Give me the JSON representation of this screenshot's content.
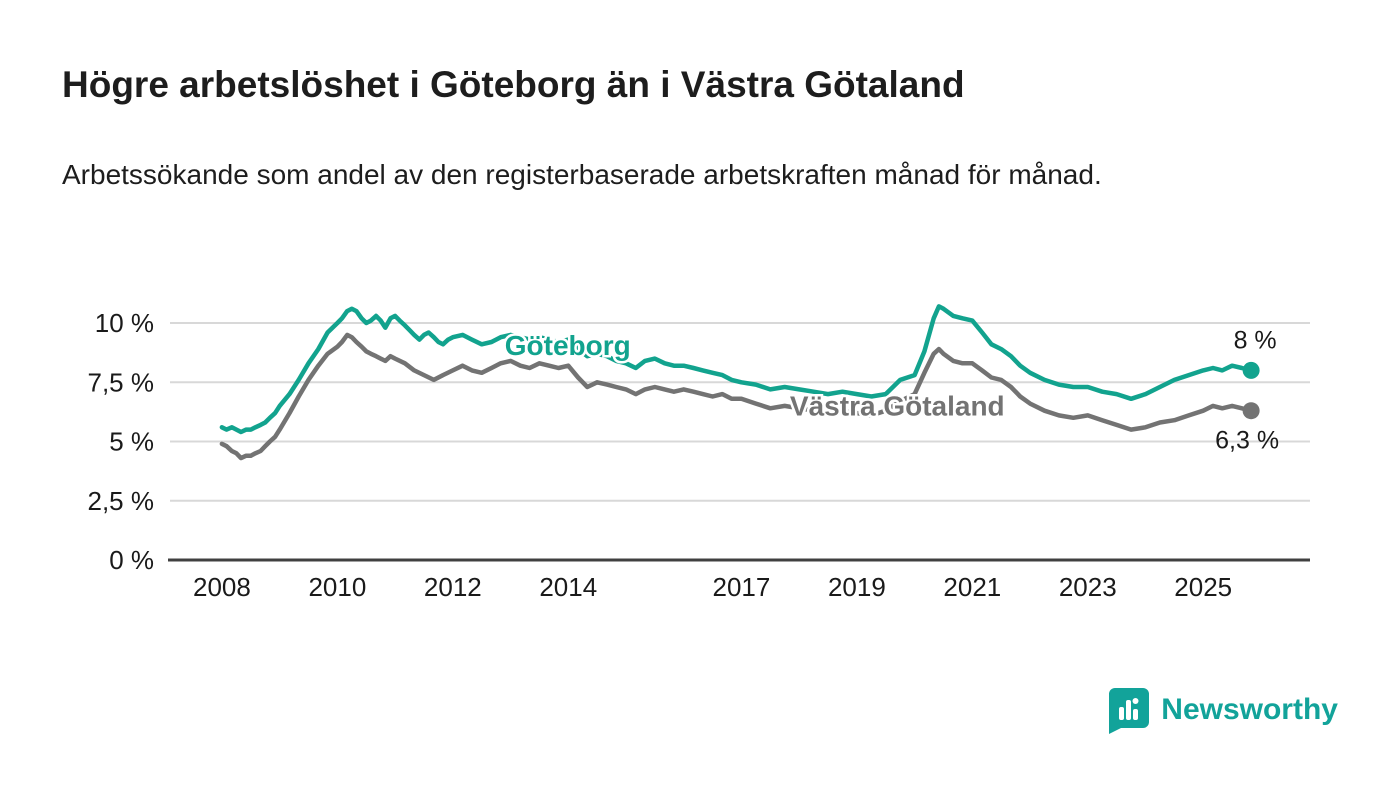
{
  "header": {
    "title": "Högre arbetslöshet i Göteborg än i Västra Götaland",
    "subtitle": "Arbetssökande som andel av den registerbaserade arbetskraften månad för månad."
  },
  "chart_data": {
    "type": "line",
    "title": "Högre arbetslöshet i Göteborg än i Västra Götaland",
    "xlabel": "",
    "ylabel": "",
    "ylim": [
      0,
      10
    ],
    "xlim": [
      2007.1,
      2026.85
    ],
    "grid": "horizontal",
    "legend": "inline-labels",
    "yticks": [
      {
        "value": 0,
        "label": "0 %"
      },
      {
        "value": 2.5,
        "label": "2,5 %"
      },
      {
        "value": 5,
        "label": "5 %"
      },
      {
        "value": 7.5,
        "label": "7,5 %"
      },
      {
        "value": 10,
        "label": "10 %"
      }
    ],
    "xticks": [
      {
        "value": 2008,
        "label": "2008"
      },
      {
        "value": 2010,
        "label": "2010"
      },
      {
        "value": 2012,
        "label": "2012"
      },
      {
        "value": 2014,
        "label": "2014"
      },
      {
        "value": 2017,
        "label": "2017"
      },
      {
        "value": 2019,
        "label": "2019"
      },
      {
        "value": 2021,
        "label": "2021"
      },
      {
        "value": 2023,
        "label": "2023"
      },
      {
        "value": 2025,
        "label": "2025"
      }
    ],
    "series": [
      {
        "name": "Göteborg",
        "color": "#12a38e",
        "end_label": "8 %",
        "label_pos": {
          "x": 2012.9,
          "y": 8.65
        },
        "points": [
          [
            2008.0,
            5.6
          ],
          [
            2008.08,
            5.5
          ],
          [
            2008.17,
            5.6
          ],
          [
            2008.25,
            5.5
          ],
          [
            2008.33,
            5.4
          ],
          [
            2008.42,
            5.5
          ],
          [
            2008.5,
            5.5
          ],
          [
            2008.58,
            5.6
          ],
          [
            2008.67,
            5.7
          ],
          [
            2008.75,
            5.8
          ],
          [
            2008.83,
            6.0
          ],
          [
            2008.92,
            6.2
          ],
          [
            2009.0,
            6.5
          ],
          [
            2009.17,
            7.0
          ],
          [
            2009.33,
            7.6
          ],
          [
            2009.5,
            8.3
          ],
          [
            2009.67,
            8.9
          ],
          [
            2009.83,
            9.6
          ],
          [
            2010.0,
            10.0
          ],
          [
            2010.08,
            10.2
          ],
          [
            2010.17,
            10.5
          ],
          [
            2010.25,
            10.6
          ],
          [
            2010.33,
            10.5
          ],
          [
            2010.42,
            10.2
          ],
          [
            2010.5,
            10.0
          ],
          [
            2010.58,
            10.1
          ],
          [
            2010.67,
            10.3
          ],
          [
            2010.75,
            10.1
          ],
          [
            2010.83,
            9.8
          ],
          [
            2010.92,
            10.2
          ],
          [
            2011.0,
            10.3
          ],
          [
            2011.08,
            10.1
          ],
          [
            2011.17,
            9.9
          ],
          [
            2011.25,
            9.7
          ],
          [
            2011.33,
            9.5
          ],
          [
            2011.42,
            9.3
          ],
          [
            2011.5,
            9.5
          ],
          [
            2011.58,
            9.6
          ],
          [
            2011.67,
            9.4
          ],
          [
            2011.75,
            9.2
          ],
          [
            2011.83,
            9.1
          ],
          [
            2011.92,
            9.3
          ],
          [
            2012.0,
            9.4
          ],
          [
            2012.17,
            9.5
          ],
          [
            2012.33,
            9.3
          ],
          [
            2012.5,
            9.1
          ],
          [
            2012.67,
            9.2
          ],
          [
            2012.83,
            9.4
          ],
          [
            2013.0,
            9.5
          ],
          [
            2013.17,
            9.4
          ],
          [
            2013.33,
            9.3
          ],
          [
            2013.5,
            9.4
          ],
          [
            2013.67,
            9.3
          ],
          [
            2013.83,
            9.2
          ],
          [
            2014.0,
            9.3
          ],
          [
            2014.17,
            8.9
          ],
          [
            2014.33,
            8.6
          ],
          [
            2014.5,
            8.7
          ],
          [
            2014.67,
            8.6
          ],
          [
            2014.83,
            8.4
          ],
          [
            2015.0,
            8.3
          ],
          [
            2015.17,
            8.1
          ],
          [
            2015.33,
            8.4
          ],
          [
            2015.5,
            8.5
          ],
          [
            2015.67,
            8.3
          ],
          [
            2015.83,
            8.2
          ],
          [
            2016.0,
            8.2
          ],
          [
            2016.17,
            8.1
          ],
          [
            2016.33,
            8.0
          ],
          [
            2016.5,
            7.9
          ],
          [
            2016.67,
            7.8
          ],
          [
            2016.83,
            7.6
          ],
          [
            2017.0,
            7.5
          ],
          [
            2017.25,
            7.4
          ],
          [
            2017.5,
            7.2
          ],
          [
            2017.75,
            7.3
          ],
          [
            2018.0,
            7.2
          ],
          [
            2018.25,
            7.1
          ],
          [
            2018.5,
            7.0
          ],
          [
            2018.75,
            7.1
          ],
          [
            2019.0,
            7.0
          ],
          [
            2019.25,
            6.9
          ],
          [
            2019.5,
            7.0
          ],
          [
            2019.75,
            7.6
          ],
          [
            2020.0,
            7.8
          ],
          [
            2020.17,
            8.8
          ],
          [
            2020.33,
            10.2
          ],
          [
            2020.42,
            10.7
          ],
          [
            2020.5,
            10.6
          ],
          [
            2020.67,
            10.3
          ],
          [
            2020.83,
            10.2
          ],
          [
            2021.0,
            10.1
          ],
          [
            2021.17,
            9.6
          ],
          [
            2021.33,
            9.1
          ],
          [
            2021.5,
            8.9
          ],
          [
            2021.67,
            8.6
          ],
          [
            2021.83,
            8.2
          ],
          [
            2022.0,
            7.9
          ],
          [
            2022.25,
            7.6
          ],
          [
            2022.5,
            7.4
          ],
          [
            2022.75,
            7.3
          ],
          [
            2023.0,
            7.3
          ],
          [
            2023.25,
            7.1
          ],
          [
            2023.5,
            7.0
          ],
          [
            2023.75,
            6.8
          ],
          [
            2024.0,
            7.0
          ],
          [
            2024.25,
            7.3
          ],
          [
            2024.5,
            7.6
          ],
          [
            2024.75,
            7.8
          ],
          [
            2025.0,
            8.0
          ],
          [
            2025.17,
            8.1
          ],
          [
            2025.33,
            8.0
          ],
          [
            2025.5,
            8.2
          ],
          [
            2025.67,
            8.1
          ],
          [
            2025.83,
            8.0
          ]
        ]
      },
      {
        "name": "Västra Götaland",
        "color": "#737373",
        "end_label": "6,3 %",
        "label_pos": {
          "x": 2017.84,
          "y": 6.1
        },
        "points": [
          [
            2008.0,
            4.9
          ],
          [
            2008.08,
            4.8
          ],
          [
            2008.17,
            4.6
          ],
          [
            2008.25,
            4.5
          ],
          [
            2008.33,
            4.3
          ],
          [
            2008.42,
            4.4
          ],
          [
            2008.5,
            4.4
          ],
          [
            2008.58,
            4.5
          ],
          [
            2008.67,
            4.6
          ],
          [
            2008.75,
            4.8
          ],
          [
            2008.83,
            5.0
          ],
          [
            2008.92,
            5.2
          ],
          [
            2009.0,
            5.5
          ],
          [
            2009.17,
            6.2
          ],
          [
            2009.33,
            6.9
          ],
          [
            2009.5,
            7.6
          ],
          [
            2009.67,
            8.2
          ],
          [
            2009.83,
            8.7
          ],
          [
            2010.0,
            9.0
          ],
          [
            2010.08,
            9.2
          ],
          [
            2010.17,
            9.5
          ],
          [
            2010.25,
            9.4
          ],
          [
            2010.33,
            9.2
          ],
          [
            2010.42,
            9.0
          ],
          [
            2010.5,
            8.8
          ],
          [
            2010.58,
            8.7
          ],
          [
            2010.67,
            8.6
          ],
          [
            2010.75,
            8.5
          ],
          [
            2010.83,
            8.4
          ],
          [
            2010.92,
            8.6
          ],
          [
            2011.0,
            8.5
          ],
          [
            2011.17,
            8.3
          ],
          [
            2011.33,
            8.0
          ],
          [
            2011.5,
            7.8
          ],
          [
            2011.67,
            7.6
          ],
          [
            2011.83,
            7.8
          ],
          [
            2012.0,
            8.0
          ],
          [
            2012.17,
            8.2
          ],
          [
            2012.33,
            8.0
          ],
          [
            2012.5,
            7.9
          ],
          [
            2012.67,
            8.1
          ],
          [
            2012.83,
            8.3
          ],
          [
            2013.0,
            8.4
          ],
          [
            2013.17,
            8.2
          ],
          [
            2013.33,
            8.1
          ],
          [
            2013.5,
            8.3
          ],
          [
            2013.67,
            8.2
          ],
          [
            2013.83,
            8.1
          ],
          [
            2014.0,
            8.2
          ],
          [
            2014.17,
            7.7
          ],
          [
            2014.33,
            7.3
          ],
          [
            2014.5,
            7.5
          ],
          [
            2014.67,
            7.4
          ],
          [
            2014.83,
            7.3
          ],
          [
            2015.0,
            7.2
          ],
          [
            2015.17,
            7.0
          ],
          [
            2015.33,
            7.2
          ],
          [
            2015.5,
            7.3
          ],
          [
            2015.67,
            7.2
          ],
          [
            2015.83,
            7.1
          ],
          [
            2016.0,
            7.2
          ],
          [
            2016.17,
            7.1
          ],
          [
            2016.33,
            7.0
          ],
          [
            2016.5,
            6.9
          ],
          [
            2016.67,
            7.0
          ],
          [
            2016.83,
            6.8
          ],
          [
            2017.0,
            6.8
          ],
          [
            2017.25,
            6.6
          ],
          [
            2017.5,
            6.4
          ],
          [
            2017.75,
            6.5
          ],
          [
            2018.0,
            6.4
          ],
          [
            2018.25,
            6.3
          ],
          [
            2018.5,
            6.2
          ],
          [
            2018.75,
            6.3
          ],
          [
            2019.0,
            6.2
          ],
          [
            2019.25,
            6.1
          ],
          [
            2019.5,
            6.3
          ],
          [
            2019.75,
            6.7
          ],
          [
            2020.0,
            7.0
          ],
          [
            2020.17,
            7.9
          ],
          [
            2020.33,
            8.7
          ],
          [
            2020.42,
            8.9
          ],
          [
            2020.5,
            8.7
          ],
          [
            2020.67,
            8.4
          ],
          [
            2020.83,
            8.3
          ],
          [
            2021.0,
            8.3
          ],
          [
            2021.17,
            8.0
          ],
          [
            2021.33,
            7.7
          ],
          [
            2021.5,
            7.6
          ],
          [
            2021.67,
            7.3
          ],
          [
            2021.83,
            6.9
          ],
          [
            2022.0,
            6.6
          ],
          [
            2022.25,
            6.3
          ],
          [
            2022.5,
            6.1
          ],
          [
            2022.75,
            6.0
          ],
          [
            2023.0,
            6.1
          ],
          [
            2023.25,
            5.9
          ],
          [
            2023.5,
            5.7
          ],
          [
            2023.75,
            5.5
          ],
          [
            2024.0,
            5.6
          ],
          [
            2024.25,
            5.8
          ],
          [
            2024.5,
            5.9
          ],
          [
            2024.75,
            6.1
          ],
          [
            2025.0,
            6.3
          ],
          [
            2025.17,
            6.5
          ],
          [
            2025.33,
            6.4
          ],
          [
            2025.5,
            6.5
          ],
          [
            2025.67,
            6.4
          ],
          [
            2025.83,
            6.3
          ]
        ]
      }
    ],
    "colors": {
      "gridline": "#d8d8d8",
      "axis": "#404040",
      "tick_text": "#1a1a1a",
      "end_label_text": "#1a1a1a"
    }
  },
  "footer": {
    "brand": "Newsworthy",
    "brand_color": "#12a39a",
    "logo_icon": "bar-chart-badge-icon"
  }
}
